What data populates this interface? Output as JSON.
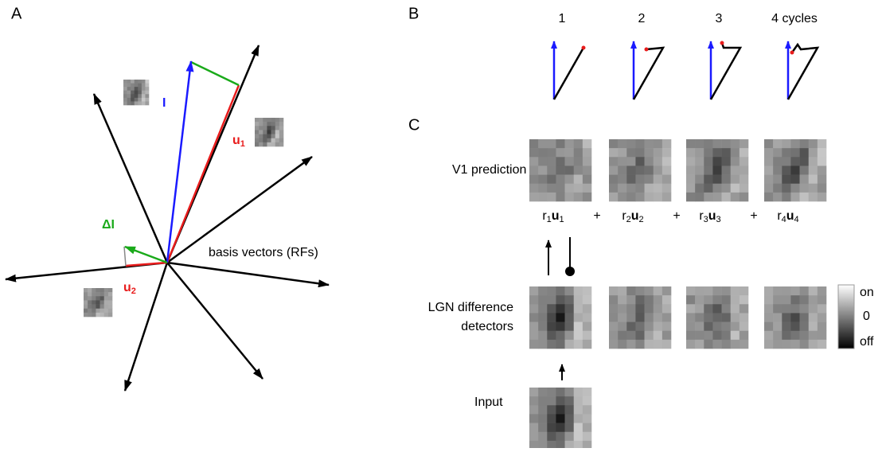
{
  "panel_labels": {
    "a": "A",
    "b": "B",
    "c": "C"
  },
  "panel_a": {
    "vector_i": "I",
    "u1": {
      "base": "u",
      "sub": "1"
    },
    "u2": {
      "base": "u",
      "sub": "2"
    },
    "delta_i": "ΔI",
    "basis_label": "basis vectors (RFs)"
  },
  "panel_b": {
    "cycles": [
      "1",
      "2",
      "3",
      "4 cycles"
    ]
  },
  "panel_c": {
    "v1_label": "V1 prediction",
    "lgn_label": [
      "LGN difference",
      "detectors"
    ],
    "input_label": "Input",
    "terms": [
      {
        "r": "r",
        "r_sub": "1",
        "u": "u",
        "u_sub": "1"
      },
      {
        "r": "r",
        "r_sub": "2",
        "u": "u",
        "u_sub": "2"
      },
      {
        "r": "r",
        "r_sub": "3",
        "u": "u",
        "u_sub": "3"
      },
      {
        "r": "r",
        "r_sub": "4",
        "u": "u",
        "u_sub": "4"
      }
    ],
    "operator": "+",
    "colorbar": [
      "on",
      "0",
      "off"
    ]
  }
}
